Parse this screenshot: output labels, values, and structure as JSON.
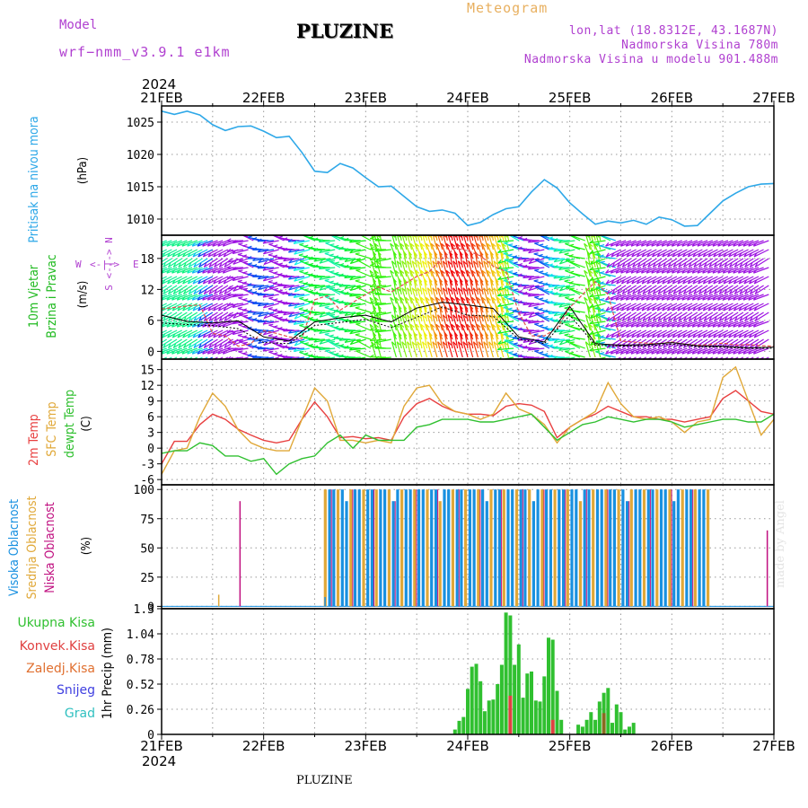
{
  "header": {
    "model_label": "Model",
    "model_run": "wrf−nmm_v3.9.1  e1km",
    "station": "PLUZINE",
    "meteogram": "Meteogram",
    "lonlat": "lon,lat (18.8312E, 43.1687N)",
    "elevation": "Nadmorska Visina 780m",
    "model_elevation": "Nadmorska Visina u modelu 901.488m"
  },
  "footer": {
    "station": "PLUZINE",
    "watermark": "made by Angel"
  },
  "colors": {
    "pressure": "#2ea8e8",
    "wind_label": "#22bb22",
    "temp2m": "#e84040",
    "sfc": "#e0a838",
    "dewpt": "#30c030",
    "cloud_high": "#1890e0",
    "cloud_mid": "#e0a838",
    "cloud_low": "#c01080",
    "precip_total": "#30c030",
    "precip_conv": "#e04040",
    "precip_frz": "#e07030",
    "snow": "#4040e0",
    "grad": "#30c0c0",
    "purple": "#b040d0"
  },
  "chart_data": [
    {
      "type": "line",
      "name": "pressure",
      "label_lines": [
        "Pritisak na nivou mora"
      ],
      "unit": "(hPa)",
      "ylim": [
        1007.5,
        1027.5
      ],
      "yticks": [
        1010,
        1015,
        1020,
        1025
      ],
      "x": [
        0,
        3,
        6,
        9,
        12,
        15,
        18,
        21,
        24,
        27,
        30,
        33,
        36,
        39,
        42,
        45,
        48,
        51,
        54,
        57,
        60,
        63,
        66,
        69,
        72,
        75,
        78,
        81,
        84,
        87,
        90,
        93,
        96,
        99,
        102,
        105,
        108,
        111,
        114,
        117,
        120,
        123,
        126,
        129,
        132,
        135,
        138,
        141,
        144
      ],
      "values": [
        1026.7,
        1026.2,
        1026.7,
        1026.1,
        1024.6,
        1023.7,
        1024.3,
        1024.4,
        1023.6,
        1022.6,
        1022.8,
        1020.3,
        1017.4,
        1017.2,
        1018.6,
        1017.9,
        1016.4,
        1015.0,
        1015.1,
        1013.5,
        1011.9,
        1011.2,
        1011.4,
        1010.9,
        1009.0,
        1009.5,
        1010.7,
        1011.6,
        1011.9,
        1014.2,
        1016.1,
        1014.8,
        1012.5,
        1010.8,
        1009.2,
        1009.7,
        1009.4,
        1009.8,
        1009.2,
        1010.3,
        1009.9,
        1008.9,
        1009.0,
        1010.9,
        1012.8,
        1014.0,
        1015.0,
        1015.4,
        1015.5
      ]
    },
    {
      "type": "line",
      "name": "wind",
      "label_lines": [
        "10m Vjetar",
        "Brzina i Pravac"
      ],
      "unit": "(m/s)",
      "ylim": [
        -1.5,
        22.5
      ],
      "yticks": [
        0,
        6,
        12,
        18
      ],
      "compass": [
        "S",
        "N",
        "W",
        "E"
      ],
      "series": [
        {
          "x": [
            0,
            6,
            12,
            18,
            24,
            30,
            36,
            42,
            48,
            54,
            60,
            66,
            72,
            78,
            84,
            90,
            96,
            102,
            108,
            114,
            120,
            126,
            132,
            138,
            144
          ],
          "values": [
            7.0,
            5.8,
            5.5,
            5.9,
            2.8,
            2.0,
            5.7,
            6.5,
            7.0,
            5.7,
            8.4,
            9.5,
            9.0,
            8.3,
            2.8,
            1.8,
            8.7,
            1.5,
            1.2,
            1.3,
            1.7,
            1.1,
            1.0,
            0.7,
            0.8
          ]
        },
        {
          "x": [
            0,
            6,
            12,
            18,
            24,
            30,
            36,
            42,
            48,
            54,
            60,
            66,
            72,
            78,
            84,
            90,
            96,
            102,
            108,
            114,
            120,
            126,
            132,
            138,
            144
          ],
          "values": [
            5.5,
            5.2,
            5.0,
            4.4,
            1.7,
            1.5,
            5.0,
            5.6,
            6.2,
            4.6,
            6.6,
            8.6,
            7.0,
            6.8,
            2.4,
            1.5,
            7.0,
            1.2,
            1.0,
            1.1,
            1.4,
            0.9,
            0.8,
            0.6,
            0.6
          ]
        }
      ],
      "gust_axis": [
        0,
        3,
        6,
        9,
        12,
        15,
        18,
        21,
        24,
        27,
        30,
        33,
        36,
        39,
        42,
        45,
        48,
        51,
        54,
        57,
        60,
        63,
        66,
        69,
        72,
        75,
        78,
        81,
        84,
        87,
        90,
        93,
        96,
        99,
        102,
        105,
        108,
        111,
        114,
        117,
        120,
        123,
        126,
        129,
        132,
        135,
        138,
        141,
        144
      ],
      "gust": [
        8.2,
        8.5,
        8.8,
        9.0,
        3.5,
        3.0,
        1.0,
        1.5,
        4.0,
        3.5,
        2.8,
        2.5,
        10.0,
        10.8,
        8.0,
        9.5,
        11.0,
        12.5,
        11.5,
        13.0,
        14.5,
        15.5,
        18.0,
        20.0,
        19.5,
        18.5,
        16.5,
        15.5,
        7.5,
        3.0,
        3.0,
        4.5,
        8.5,
        11.0,
        13.5,
        11.0,
        2.0,
        1.8,
        1.6,
        1.5,
        1.8,
        1.4,
        1.2,
        1.3,
        1.6,
        1.2,
        1.3,
        1.1,
        1.0
      ]
    },
    {
      "type": "line",
      "name": "temperature",
      "label_lines": [
        "2m Temp",
        "SFC Temp",
        "dewpt Temp"
      ],
      "unit": "(C)",
      "ylim": [
        -7,
        17
      ],
      "yticks": [
        -6,
        -3,
        0,
        3,
        6,
        9,
        12,
        15
      ],
      "x": [
        0,
        3,
        6,
        9,
        12,
        15,
        18,
        21,
        24,
        27,
        30,
        33,
        36,
        39,
        42,
        45,
        48,
        51,
        54,
        57,
        60,
        63,
        66,
        69,
        72,
        75,
        78,
        81,
        84,
        87,
        90,
        93,
        96,
        99,
        102,
        105,
        108,
        111,
        114,
        117,
        120,
        123,
        126,
        129,
        132,
        135,
        138,
        141,
        144
      ],
      "series": [
        {
          "name": "2m",
          "values": [
            -3.0,
            1.3,
            1.3,
            4.5,
            6.5,
            5.5,
            3.6,
            2.5,
            1.5,
            1.0,
            1.5,
            5.5,
            8.8,
            6.0,
            2.0,
            2.2,
            1.8,
            2.0,
            1.5,
            6.0,
            8.5,
            9.5,
            8.0,
            7.0,
            6.5,
            6.5,
            6.2,
            8.0,
            8.5,
            8.2,
            7.0,
            2.0,
            4.0,
            5.5,
            6.5,
            8.0,
            7.0,
            6.0,
            6.0,
            5.5,
            5.5,
            5.0,
            5.5,
            6.0,
            9.5,
            11.0,
            9.0,
            7.0,
            6.5
          ]
        },
        {
          "name": "SFC",
          "values": [
            -5.0,
            -0.5,
            0.0,
            6.0,
            10.5,
            8.0,
            3.5,
            1.0,
            0.0,
            -0.5,
            -0.5,
            5.5,
            11.5,
            9.0,
            1.5,
            1.5,
            1.0,
            1.5,
            1.0,
            8.0,
            11.5,
            12.0,
            8.5,
            7.0,
            6.5,
            5.5,
            6.5,
            10.5,
            7.5,
            6.5,
            4.5,
            1.0,
            4.0,
            5.5,
            7.0,
            12.5,
            8.5,
            6.0,
            5.5,
            6.0,
            5.0,
            3.0,
            5.0,
            5.5,
            13.5,
            15.5,
            9.0,
            2.5,
            5.5
          ]
        },
        {
          "name": "dewpt",
          "values": [
            -1.0,
            -0.5,
            -0.5,
            1.0,
            0.5,
            -1.5,
            -1.5,
            -2.5,
            -2.0,
            -5.0,
            -3.0,
            -2.0,
            -1.5,
            1.0,
            2.5,
            0.0,
            2.5,
            1.5,
            1.5,
            1.5,
            4.0,
            4.5,
            5.5,
            5.5,
            5.5,
            5.0,
            5.0,
            5.5,
            6.0,
            6.5,
            4.0,
            1.5,
            3.0,
            4.5,
            5.0,
            6.0,
            5.5,
            5.0,
            5.5,
            5.5,
            5.0,
            4.0,
            4.5,
            5.0,
            5.5,
            5.5,
            5.0,
            5.0,
            6.5
          ]
        }
      ]
    },
    {
      "type": "bar",
      "name": "cloud",
      "label_lines": [
        "Visoka Oblacnost",
        "Srednja Oblacnost",
        "Niska Oblacnost"
      ],
      "unit": "(%)",
      "ylim": [
        -2,
        104
      ],
      "yticks": [
        0,
        25,
        50,
        75,
        100
      ],
      "overcast_window_hours": [
        38.5,
        129.0
      ],
      "spikes": [
        {
          "hour": 13.5,
          "value": 10,
          "layer": "mid"
        },
        {
          "hour": 18.5,
          "value": 90,
          "layer": "low"
        },
        {
          "hour": 38.5,
          "value": 8,
          "layer": "high"
        },
        {
          "hour": 142.5,
          "value": 65,
          "layer": "low"
        }
      ]
    },
    {
      "type": "bar",
      "name": "precip",
      "label_lines": [
        "1hr Precip"
      ],
      "unit": "(mm)",
      "ylim": [
        0,
        1.3
      ],
      "yticks": [
        0,
        0.26,
        0.52,
        0.78,
        1.04,
        1.3
      ],
      "series_labels": [
        "Ukupna Kisa",
        "Konvek.Kisa",
        "Zaledj.Kisa",
        "Snijeg",
        "Grad"
      ],
      "x": [
        69,
        70,
        71,
        72,
        73,
        74,
        75,
        76,
        77,
        78,
        79,
        80,
        81,
        82,
        83,
        84,
        85,
        86,
        87,
        88,
        89,
        90,
        91,
        92,
        93,
        94,
        95,
        96,
        97,
        98,
        99,
        100,
        101,
        102,
        103,
        104,
        105,
        106,
        107,
        108,
        109,
        110,
        111
      ],
      "values": [
        0.05,
        0.14,
        0.18,
        0.47,
        0.7,
        0.73,
        0.55,
        0.24,
        0.35,
        0.36,
        0.52,
        0.72,
        1.26,
        1.23,
        0.72,
        0.93,
        0.38,
        0.63,
        0.65,
        0.35,
        0.34,
        0.6,
        1.0,
        0.98,
        0.45,
        0.15,
        0.0,
        0.0,
        0.0,
        0.1,
        0.08,
        0.15,
        0.23,
        0.15,
        0.34,
        0.43,
        0.48,
        0.12,
        0.31,
        0.23,
        0.05,
        0.08,
        0.12
      ],
      "conv_x": [
        82,
        92,
        104
      ],
      "conv_values": [
        0.4,
        0.15,
        0.22
      ]
    }
  ],
  "time_axis": {
    "year": "2024",
    "ticks": [
      "21FEB",
      "22FEB",
      "23FEB",
      "24FEB",
      "25FEB",
      "26FEB",
      "27FEB"
    ],
    "hours_per_tick": 24,
    "total_hours": 144
  }
}
